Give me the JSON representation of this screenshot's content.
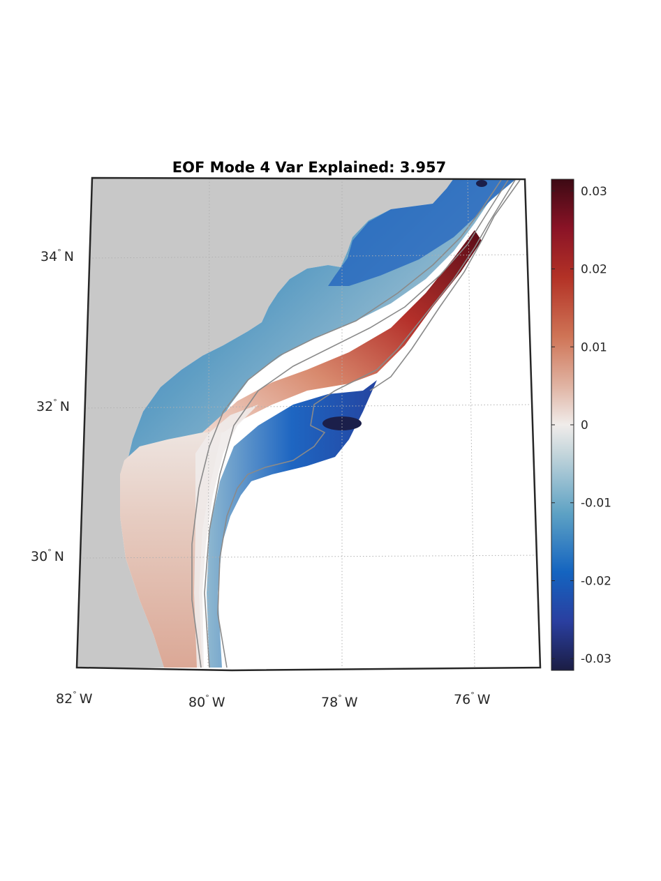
{
  "title": "EOF Mode 4 Var Explained: 3.957",
  "longitude_labels": [
    {
      "deg": "82",
      "hemi": "W"
    },
    {
      "deg": "80",
      "hemi": "W"
    },
    {
      "deg": "78",
      "hemi": "W"
    },
    {
      "deg": "76",
      "hemi": "W"
    }
  ],
  "latitude_labels": [
    {
      "deg": "34",
      "hemi": "N"
    },
    {
      "deg": "32",
      "hemi": "N"
    },
    {
      "deg": "30",
      "hemi": "N"
    }
  ],
  "degree_symbol": "°",
  "colorbar": {
    "ticks": [
      "0.03",
      "0.02",
      "0.01",
      "0",
      "-0.01",
      "-0.02",
      "-0.03"
    ],
    "range": [
      -0.0315,
      0.0315
    ],
    "colormap": "balance (diverging blue–white–red)",
    "colors": [
      "#1b1d44",
      "#2a3fa0",
      "#1464c0",
      "#5ea2c4",
      "#c3d5db",
      "#f0ecea",
      "#e0b3a2",
      "#cf7456",
      "#b33226",
      "#8a1326",
      "#3d0a14"
    ]
  },
  "land_color": "#c8c8c8",
  "contour_color": "#8a8a8a",
  "grid": "dotted"
}
